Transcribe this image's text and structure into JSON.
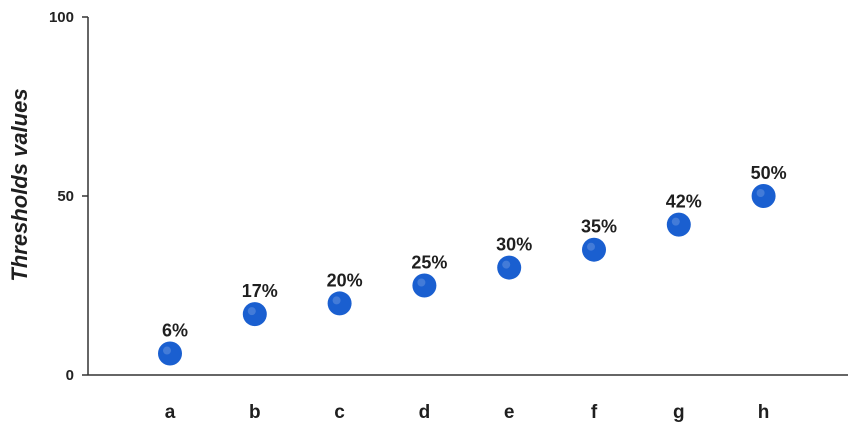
{
  "chart_data": {
    "type": "scatter",
    "title": "",
    "xlabel": "",
    "ylabel": "Thresholds values",
    "categories": [
      "a",
      "b",
      "c",
      "d",
      "e",
      "f",
      "g",
      "h"
    ],
    "values": [
      6,
      17,
      20,
      25,
      30,
      35,
      42,
      50
    ],
    "data_labels": [
      "6%",
      "17%",
      "20%",
      "25%",
      "30%",
      "35%",
      "42%",
      "50%"
    ],
    "y_ticks": [
      0,
      50,
      100
    ],
    "y_tick_labels": [
      "0",
      "50",
      "100"
    ],
    "ylim": [
      0,
      100
    ],
    "grid": false,
    "legend": "none",
    "colors": {
      "marker": "#1a5fd0",
      "axis": "#333333",
      "text": "#1f1f1f"
    }
  }
}
